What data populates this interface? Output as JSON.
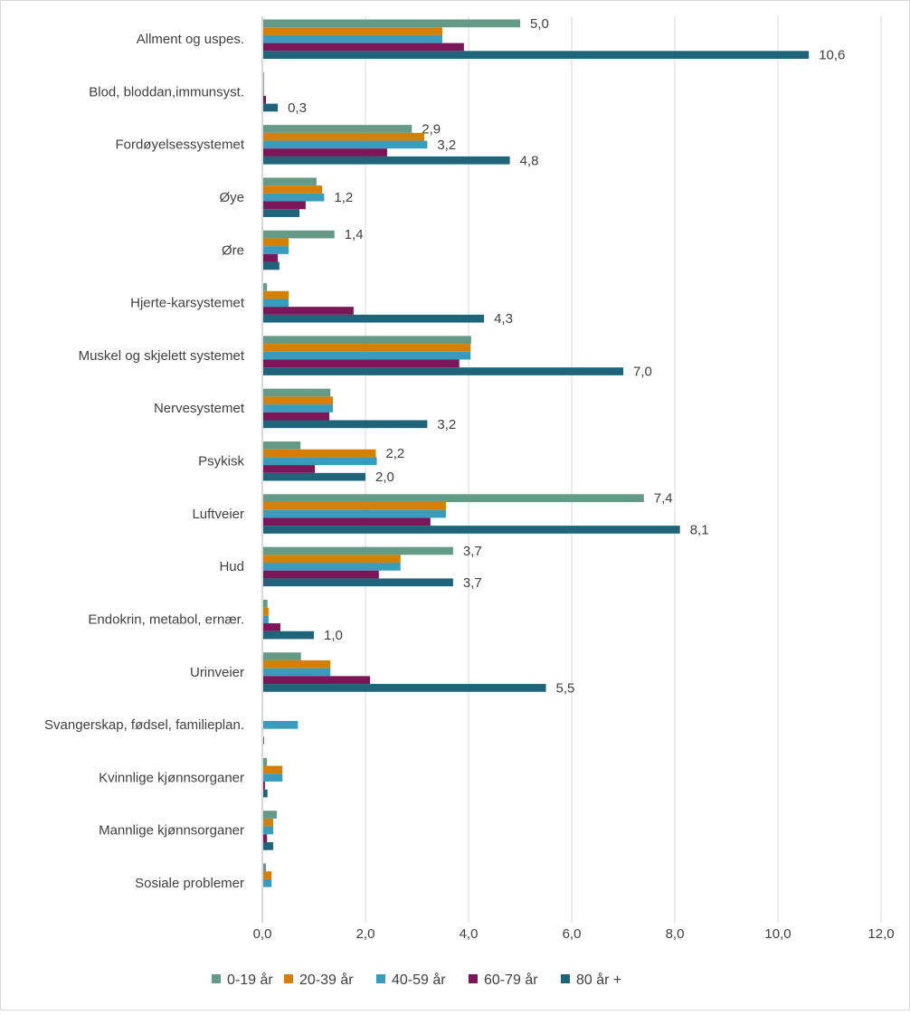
{
  "chart_data": {
    "type": "bar",
    "orientation": "horizontal",
    "categories": [
      "Allment og uspes.",
      "Blod, bloddan,immunsyst.",
      "Fordøyelsessystemet",
      "Øye",
      "Øre",
      "Hjerte-karsystemet",
      "Muskel og skjelett systemet",
      "Nervesystemet",
      "Psykisk",
      "Luftveier",
      "Hud",
      "Endokrin, metabol, ernær.",
      "Urinveier",
      "Svangerskap, fødsel, familieplan.",
      "Kvinnlige kjønnsorganer",
      "Mannlige kjønnsorganer",
      "Sosiale problemer"
    ],
    "series": [
      {
        "name": "0-19 år",
        "color": "#659A87",
        "values": [
          5.0,
          0.03,
          2.9,
          1.05,
          1.4,
          0.09,
          4.05,
          1.32,
          0.74,
          7.4,
          3.7,
          0.1,
          0.75,
          0,
          0.09,
          0.28,
          0.07
        ],
        "data_labels": [
          "5,0",
          null,
          "2,9",
          null,
          "1,4",
          null,
          null,
          null,
          null,
          "7,4",
          "3,7",
          null,
          null,
          null,
          null,
          null,
          null
        ]
      },
      {
        "name": "20-39 år",
        "color": "#D47F00",
        "values": [
          3.49,
          0.03,
          3.14,
          1.16,
          0.51,
          0.51,
          4.04,
          1.37,
          2.2,
          3.56,
          2.68,
          0.12,
          1.32,
          0,
          0.39,
          0.21,
          0.18
        ],
        "data_labels": [
          null,
          null,
          null,
          null,
          null,
          null,
          null,
          null,
          "2,2",
          null,
          null,
          null,
          null,
          null,
          null,
          null,
          null
        ]
      },
      {
        "name": "40-59 år",
        "color": "#3A9CBC",
        "values": [
          3.49,
          0.03,
          3.2,
          1.2,
          0.51,
          0.51,
          4.04,
          1.37,
          2.22,
          3.56,
          2.68,
          0.12,
          1.32,
          0.69,
          0.39,
          0.21,
          0.18
        ],
        "data_labels": [
          null,
          null,
          "3,2",
          "1,2",
          null,
          null,
          null,
          null,
          null,
          null,
          null,
          null,
          null,
          null,
          null,
          null,
          null
        ]
      },
      {
        "name": "60-79 år",
        "color": "#7B1658",
        "values": [
          3.91,
          0.07,
          2.42,
          0.84,
          0.3,
          1.77,
          3.82,
          1.3,
          1.02,
          3.26,
          2.26,
          0.35,
          2.09,
          0,
          0.05,
          0.09,
          0
        ],
        "data_labels": [
          null,
          null,
          null,
          null,
          null,
          null,
          null,
          null,
          null,
          null,
          null,
          null,
          null,
          null,
          null,
          null,
          null
        ]
      },
      {
        "name": "80 år +",
        "color": "#1F6478",
        "values": [
          10.6,
          0.3,
          4.8,
          0.72,
          0.33,
          4.3,
          7.0,
          3.2,
          2.0,
          8.1,
          3.7,
          1.0,
          5.5,
          0.02,
          0.1,
          0.21,
          0
        ],
        "data_labels": [
          "10,6",
          "0,3",
          "4,8",
          null,
          null,
          "4,3",
          "7,0",
          "3,2",
          "2,0",
          "8,1",
          "3,7",
          "1,0",
          "5,5",
          null,
          null,
          null,
          null
        ]
      }
    ],
    "xlim": [
      0,
      12
    ],
    "xticks": [
      "0,0",
      "2,0",
      "4,0",
      "6,0",
      "8,0",
      "10,0",
      "12,0"
    ],
    "grid": true,
    "legend_position": "bottom"
  }
}
